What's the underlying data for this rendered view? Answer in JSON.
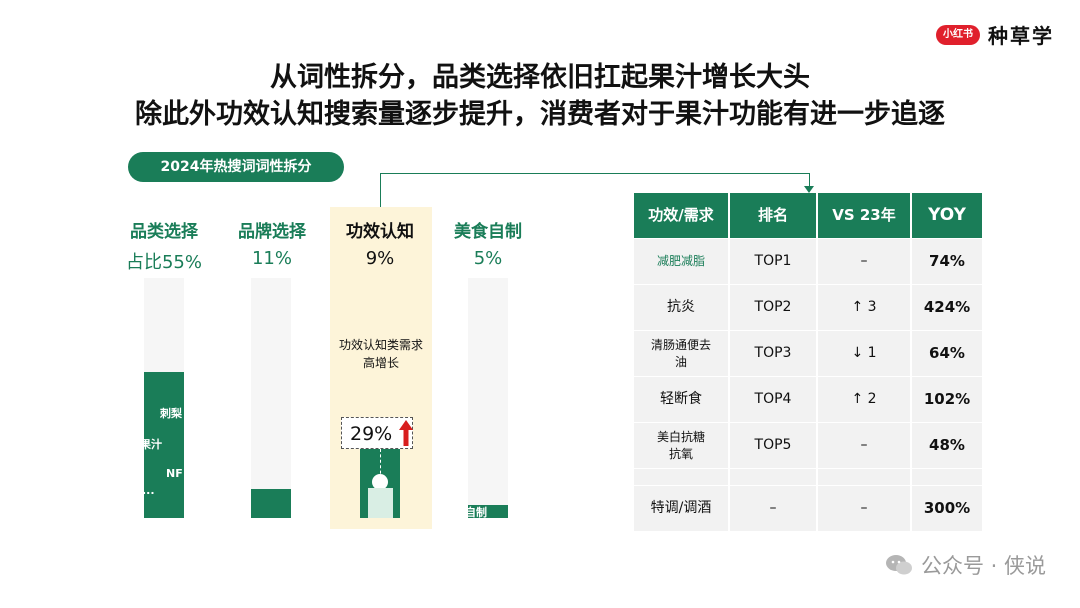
{
  "brand": {
    "logo_text": "小红书",
    "name": "种草学"
  },
  "title_line1": "从词性拆分，品类选择依旧扛起果汁增长大头",
  "title_line2": "除此外功效认知搜索量逐步提升，消费者对于果汁功能有进一步追逐",
  "section_pill": "2024年热搜词词性拆分",
  "chart_data": {
    "type": "bar",
    "title": "2024年热搜词词性拆分",
    "categories": [
      "品类选择",
      "品牌选择",
      "功效认知",
      "美食自制"
    ],
    "values": [
      55,
      11,
      9,
      5
    ],
    "value_labels": [
      "占比55%",
      "11%",
      "9%",
      "5%"
    ],
    "unit": "%",
    "ylim": [
      0,
      100
    ],
    "bar_inner_labels": {
      "品类选择": [
        "刺梨",
        "果汁",
        "NF",
        "..."
      ],
      "美食自制": [
        "自制"
      ]
    },
    "highlight_category": "功效认知",
    "annotation": {
      "text": "功效认知类需求高增长",
      "growth": "29%"
    }
  },
  "table": {
    "headers": [
      "功效/需求",
      "排名",
      "VS 23年",
      "YOY"
    ],
    "rows": [
      {
        "need": "减肥减脂",
        "rank": "TOP1",
        "vs": "–",
        "yoy": "74%"
      },
      {
        "need": "抗炎",
        "rank": "TOP2",
        "vs": "↑ 3",
        "yoy": "424%"
      },
      {
        "need": "清肠通便去油",
        "rank": "TOP3",
        "vs": "↓ 1",
        "yoy": "64%"
      },
      {
        "need": "轻断食",
        "rank": "TOP4",
        "vs": "↑ 2",
        "yoy": "102%"
      },
      {
        "need": "美白抗糖抗氧",
        "rank": "TOP5",
        "vs": "–",
        "yoy": "48%"
      }
    ],
    "extra_row": {
      "need": "特调/调酒",
      "rank": "–",
      "vs": "–",
      "yoy": "300%"
    }
  },
  "watermark": {
    "text": "公众号 · 侠说",
    "icon": "wechat-icon"
  },
  "colors": {
    "accent": "#1a7d58",
    "highlight": "#fdf4d9",
    "brand_red": "#e0202c",
    "up_arrow": "#d81e1e"
  }
}
